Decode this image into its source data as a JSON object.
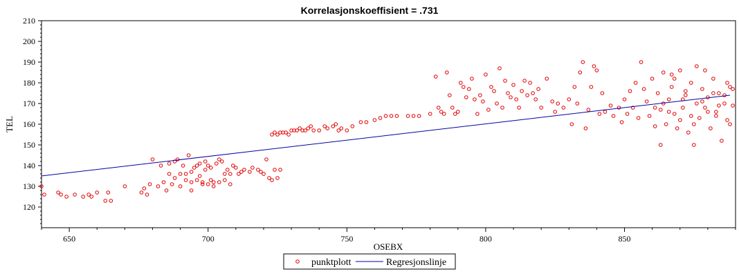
{
  "chart_data": {
    "type": "scatter",
    "title": "Korrelasjonskoeffisient =  .731",
    "xlabel": "OSEBX",
    "ylabel": "TEL",
    "xlim": [
      640,
      890
    ],
    "ylim": [
      110,
      210
    ],
    "x_ticks": [
      650,
      700,
      750,
      800,
      850
    ],
    "y_ticks": [
      120,
      130,
      140,
      150,
      160,
      170,
      180,
      190,
      200,
      210
    ],
    "grid": false,
    "legend_position": "bottom-center",
    "colors": {
      "points": "#e00000",
      "line": "#0000a0"
    },
    "series": [
      {
        "name": "punktplott",
        "kind": "scatter",
        "points": [
          [
            640,
            130
          ],
          [
            641,
            126
          ],
          [
            646,
            127
          ],
          [
            647,
            126
          ],
          [
            649,
            125
          ],
          [
            652,
            126
          ],
          [
            655,
            125
          ],
          [
            657,
            126
          ],
          [
            658,
            125
          ],
          [
            660,
            127
          ],
          [
            663,
            123
          ],
          [
            664,
            127
          ],
          [
            665,
            123
          ],
          [
            670,
            130
          ],
          [
            676,
            127
          ],
          [
            677,
            129
          ],
          [
            678,
            126
          ],
          [
            679,
            131
          ],
          [
            680,
            143
          ],
          [
            682,
            130
          ],
          [
            683,
            140
          ],
          [
            684,
            132
          ],
          [
            685,
            128
          ],
          [
            686,
            141
          ],
          [
            687,
            131
          ],
          [
            688,
            142
          ],
          [
            689,
            143
          ],
          [
            690,
            136
          ],
          [
            691,
            140
          ],
          [
            692,
            133
          ],
          [
            693,
            145
          ],
          [
            694,
            132
          ],
          [
            695,
            139
          ],
          [
            696,
            133
          ],
          [
            697,
            141
          ],
          [
            698,
            132
          ],
          [
            699,
            138
          ],
          [
            700,
            131
          ],
          [
            701,
            139
          ],
          [
            702,
            130
          ],
          [
            703,
            141
          ],
          [
            704,
            132
          ],
          [
            705,
            142
          ],
          [
            706,
            136
          ],
          [
            707,
            138
          ],
          [
            708,
            131
          ],
          [
            709,
            140
          ],
          [
            710,
            139
          ],
          [
            711,
            136
          ],
          [
            712,
            137
          ],
          [
            713,
            138
          ],
          [
            715,
            137
          ],
          [
            716,
            139
          ],
          [
            718,
            138
          ],
          [
            719,
            137
          ],
          [
            720,
            136
          ],
          [
            721,
            143
          ],
          [
            722,
            134
          ],
          [
            723,
            133
          ],
          [
            724,
            138
          ],
          [
            725,
            134
          ],
          [
            726,
            138
          ],
          [
            690,
            130
          ],
          [
            692,
            136
          ],
          [
            694,
            128
          ],
          [
            696,
            140
          ],
          [
            698,
            131
          ],
          [
            700,
            140
          ],
          [
            702,
            132
          ],
          [
            704,
            143
          ],
          [
            706,
            133
          ],
          [
            708,
            136
          ],
          [
            694,
            137
          ],
          [
            697,
            135
          ],
          [
            699,
            142
          ],
          [
            701,
            133
          ],
          [
            686,
            136
          ],
          [
            688,
            134
          ],
          [
            723,
            155
          ],
          [
            724,
            156
          ],
          [
            725,
            155
          ],
          [
            726,
            156
          ],
          [
            727,
            156
          ],
          [
            728,
            156
          ],
          [
            729,
            155
          ],
          [
            730,
            157
          ],
          [
            731,
            157
          ],
          [
            732,
            157
          ],
          [
            733,
            158
          ],
          [
            734,
            157
          ],
          [
            735,
            157
          ],
          [
            736,
            158
          ],
          [
            737,
            159
          ],
          [
            738,
            157
          ],
          [
            740,
            157
          ],
          [
            742,
            159
          ],
          [
            743,
            158
          ],
          [
            745,
            159
          ],
          [
            746,
            160
          ],
          [
            747,
            157
          ],
          [
            748,
            158
          ],
          [
            750,
            157
          ],
          [
            752,
            159
          ],
          [
            755,
            161
          ],
          [
            757,
            161
          ],
          [
            760,
            162
          ],
          [
            762,
            163
          ],
          [
            764,
            164
          ],
          [
            766,
            164
          ],
          [
            768,
            164
          ],
          [
            772,
            164
          ],
          [
            774,
            164
          ],
          [
            776,
            164
          ],
          [
            780,
            165
          ],
          [
            782,
            183
          ],
          [
            783,
            168
          ],
          [
            784,
            166
          ],
          [
            785,
            165
          ],
          [
            786,
            185
          ],
          [
            787,
            174
          ],
          [
            788,
            168
          ],
          [
            789,
            165
          ],
          [
            790,
            166
          ],
          [
            791,
            180
          ],
          [
            792,
            178
          ],
          [
            793,
            173
          ],
          [
            794,
            177
          ],
          [
            795,
            182
          ],
          [
            796,
            172
          ],
          [
            797,
            165
          ],
          [
            798,
            174
          ],
          [
            799,
            171
          ],
          [
            800,
            184
          ],
          [
            801,
            167
          ],
          [
            802,
            178
          ],
          [
            803,
            176
          ],
          [
            804,
            170
          ],
          [
            805,
            187
          ],
          [
            806,
            168
          ],
          [
            807,
            181
          ],
          [
            808,
            175
          ],
          [
            809,
            173
          ],
          [
            810,
            179
          ],
          [
            811,
            172
          ],
          [
            812,
            168
          ],
          [
            813,
            176
          ],
          [
            814,
            181
          ],
          [
            815,
            174
          ],
          [
            816,
            180
          ],
          [
            817,
            175
          ],
          [
            818,
            172
          ],
          [
            819,
            177
          ],
          [
            820,
            168
          ],
          [
            822,
            182
          ],
          [
            824,
            171
          ],
          [
            825,
            166
          ],
          [
            826,
            170
          ],
          [
            828,
            168
          ],
          [
            830,
            172
          ],
          [
            831,
            160
          ],
          [
            832,
            178
          ],
          [
            833,
            170
          ],
          [
            834,
            185
          ],
          [
            835,
            190
          ],
          [
            836,
            158
          ],
          [
            837,
            167
          ],
          [
            838,
            178
          ],
          [
            839,
            188
          ],
          [
            840,
            186
          ],
          [
            841,
            165
          ],
          [
            842,
            175
          ],
          [
            843,
            166
          ],
          [
            845,
            169
          ],
          [
            846,
            164
          ],
          [
            848,
            168
          ],
          [
            849,
            161
          ],
          [
            850,
            172
          ],
          [
            851,
            165
          ],
          [
            852,
            176
          ],
          [
            853,
            168
          ],
          [
            854,
            180
          ],
          [
            855,
            163
          ],
          [
            856,
            190
          ],
          [
            857,
            177
          ],
          [
            858,
            171
          ],
          [
            859,
            164
          ],
          [
            860,
            182
          ],
          [
            861,
            168
          ],
          [
            862,
            175
          ],
          [
            863,
            150
          ],
          [
            864,
            185
          ],
          [
            865,
            160
          ],
          [
            866,
            172
          ],
          [
            867,
            178
          ],
          [
            868,
            165
          ],
          [
            869,
            158
          ],
          [
            870,
            186
          ],
          [
            871,
            168
          ],
          [
            872,
            174
          ],
          [
            873,
            156
          ],
          [
            874,
            180
          ],
          [
            875,
            150
          ],
          [
            876,
            170
          ],
          [
            877,
            163
          ],
          [
            878,
            177
          ],
          [
            879,
            168
          ],
          [
            880,
            173
          ],
          [
            881,
            158
          ],
          [
            882,
            182
          ],
          [
            883,
            166
          ],
          [
            884,
            175
          ],
          [
            885,
            152
          ],
          [
            886,
            170
          ],
          [
            887,
            180
          ],
          [
            888,
            160
          ],
          [
            889,
            169
          ],
          [
            861,
            159
          ],
          [
            864,
            170
          ],
          [
            866,
            166
          ],
          [
            868,
            182
          ],
          [
            870,
            162
          ],
          [
            872,
            176
          ],
          [
            874,
            164
          ],
          [
            876,
            188
          ],
          [
            878,
            171
          ],
          [
            880,
            166
          ],
          [
            882,
            175
          ],
          [
            884,
            169
          ],
          [
            886,
            174
          ],
          [
            888,
            178
          ],
          [
            863,
            167
          ],
          [
            867,
            184
          ],
          [
            871,
            172
          ],
          [
            875,
            160
          ],
          [
            879,
            186
          ],
          [
            883,
            164
          ],
          [
            887,
            162
          ],
          [
            889,
            177
          ]
        ]
      },
      {
        "name": "Regresjonslinje",
        "kind": "line",
        "points": [
          [
            640,
            135
          ],
          [
            888,
            174
          ]
        ]
      }
    ]
  }
}
